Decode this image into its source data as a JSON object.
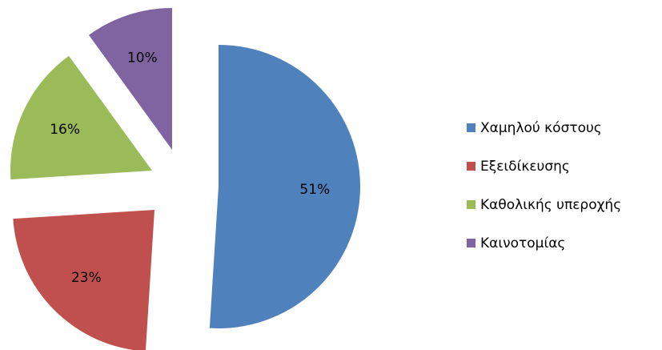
{
  "chart_data": {
    "type": "pie",
    "categories": [
      "Χαμηλού κόστους",
      "Εξειδίκευσης",
      "Καθολικής υπεροχής",
      "Καινοτομίας"
    ],
    "values": [
      51,
      23,
      16,
      10
    ],
    "value_labels": [
      "51%",
      "23%",
      "16%",
      "10%"
    ],
    "colors": [
      "#4f81bd",
      "#c0504d",
      "#9bbb59",
      "#8064a2"
    ],
    "legend": "right"
  }
}
